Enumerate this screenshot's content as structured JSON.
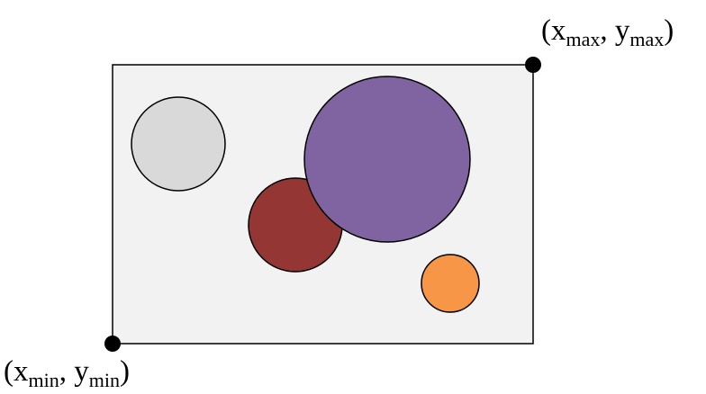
{
  "labels": {
    "max": {
      "open": "(",
      "x": "x",
      "x_sub": "max",
      "sep": ", ",
      "y": "y",
      "y_sub": "max",
      "close": ")"
    },
    "min": {
      "open": "(",
      "x": "x",
      "x_sub": "min",
      "sep": ", ",
      "y": "y",
      "y_sub": "min",
      "close": ")"
    }
  },
  "colors": {
    "box_fill": "#f2f2f2",
    "box_stroke": "#000000",
    "corner_point": "#000000",
    "circle_light_gray": "#d9d9d9",
    "circle_dark_red": "#943634",
    "circle_purple": "#8064a2",
    "circle_orange": "#f79646"
  },
  "shapes": {
    "bounding_box": "rectangle",
    "circles": [
      "light-gray",
      "dark-red",
      "purple",
      "orange"
    ],
    "corner_points": [
      "max-corner",
      "min-corner"
    ]
  }
}
